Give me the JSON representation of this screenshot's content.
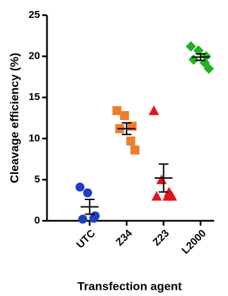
{
  "chart_data": {
    "type": "dot",
    "xlabel": "Transfection agent",
    "ylabel": "Cleavage efficiency (%)",
    "ylim": [
      0,
      25
    ],
    "yticks": [
      0,
      5,
      10,
      15,
      20,
      25
    ],
    "groups": [
      {
        "name": "UTC",
        "color": "#1f3fc4",
        "marker": "circle",
        "values": [
          4.1,
          3.4,
          0.6,
          0.2,
          0.3
        ],
        "mean": 1.7,
        "sem": 0.9
      },
      {
        "name": "Z34",
        "color": "#f07d2a",
        "marker": "square",
        "values": [
          13.4,
          12.8,
          11.5,
          11.2,
          9.7,
          8.6
        ],
        "mean": 11.2,
        "sem": 0.7
      },
      {
        "name": "Z23",
        "color": "#e8101b",
        "marker": "triangle",
        "values": [
          13.4,
          5.0,
          3.5,
          3.0,
          3.0,
          3.0
        ],
        "mean": 5.2,
        "sem": 1.7
      },
      {
        "name": "L2000",
        "color": "#21b021",
        "marker": "diamond",
        "values": [
          21.2,
          20.7,
          20.0,
          19.6,
          19.2,
          18.5
        ],
        "mean": 19.9,
        "sem": 0.4
      }
    ]
  }
}
